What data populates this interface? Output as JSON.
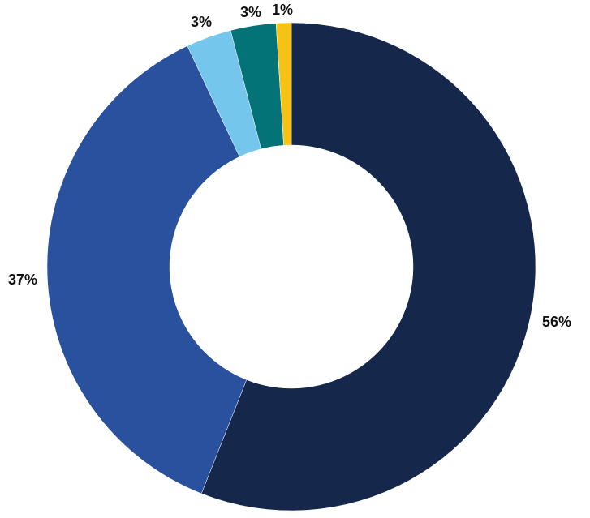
{
  "chart_data": {
    "type": "pie",
    "style": "donut",
    "values": [
      56,
      37,
      3,
      3,
      1
    ],
    "labels": [
      "56%",
      "37%",
      "3%",
      "3%",
      "1%"
    ],
    "colors": [
      "#15284B",
      "#2A519D",
      "#74C6EC",
      "#047377",
      "#F5C315"
    ],
    "start_angle_deg": 0,
    "direction": "clockwise",
    "legend": "none"
  }
}
